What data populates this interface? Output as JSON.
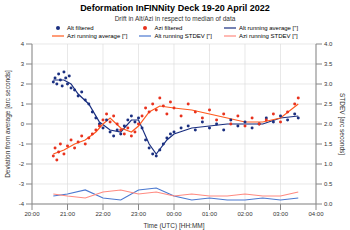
{
  "chart_data": {
    "type": "scatter",
    "title": "Deformation InFINNity Deck 19-20 April 2022",
    "subtitle": "Drift in Alt/Azi in respect to median of data",
    "x_label": "Time (UTC) [HH:MM]",
    "y_label": "Deviation from average [arc seconds]",
    "y2_label": "STDEV [arc seconds]",
    "xlim": [
      20,
      28
    ],
    "xticks": [
      {
        "value": 20,
        "label": "20:00"
      },
      {
        "value": 21,
        "label": "21:00"
      },
      {
        "value": 22,
        "label": "22:00"
      },
      {
        "value": 23,
        "label": "23:00"
      },
      {
        "value": 24,
        "label": "00:00"
      },
      {
        "value": 25,
        "label": "01:00"
      },
      {
        "value": 26,
        "label": "02:00"
      },
      {
        "value": 27,
        "label": "03:00"
      },
      {
        "value": 28,
        "label": "04:00"
      }
    ],
    "ylim": [
      -4,
      4
    ],
    "yticks": [
      -4,
      -3,
      -2,
      -1,
      0,
      1,
      2,
      3,
      4
    ],
    "y2lim": [
      0,
      4
    ],
    "y2ticks": [
      {
        "value": 0,
        "label": "0.0"
      },
      0.5,
      {
        "value": 1,
        "label": "1.0"
      },
      1.5,
      {
        "value": 2,
        "label": "2.0"
      },
      2.5,
      {
        "value": 3,
        "label": "3.0"
      },
      3.5,
      {
        "value": 4,
        "label": "4.0"
      }
    ],
    "grid": true,
    "series": [
      {
        "name": "Alt filtered",
        "type": "scatter",
        "marker": "circle",
        "color": "#1a2f80",
        "x": [
          20.6,
          20.65,
          20.7,
          20.75,
          20.8,
          20.85,
          20.9,
          20.95,
          21.0,
          21.05,
          21.1,
          21.2,
          21.3,
          21.4,
          21.5,
          21.6,
          21.7,
          21.8,
          21.9,
          22.0,
          22.1,
          22.2,
          22.3,
          22.4,
          22.5,
          22.6,
          22.7,
          22.8,
          22.9,
          23.0,
          23.1,
          23.2,
          23.3,
          23.4,
          23.5,
          23.6,
          23.7,
          23.8,
          23.9,
          24.0,
          24.2,
          24.4,
          24.6,
          24.8,
          25.0,
          25.2,
          25.4,
          25.6,
          25.8,
          26.0,
          26.2,
          26.4,
          26.6,
          26.8,
          27.0,
          27.2,
          27.4,
          27.5
        ],
        "values": [
          2.1,
          2.3,
          2.0,
          2.5,
          2.2,
          1.9,
          2.6,
          2.3,
          2.0,
          2.4,
          1.8,
          1.7,
          1.4,
          1.6,
          1.2,
          1.0,
          0.6,
          0.3,
          0.0,
          -0.2,
          0.2,
          -0.4,
          -0.6,
          -0.3,
          -0.5,
          -0.1,
          0.2,
          0.4,
          0.1,
          0.3,
          -0.2,
          -0.8,
          -1.2,
          -1.5,
          -1.6,
          -1.3,
          -1.0,
          -0.7,
          -0.5,
          -0.4,
          -0.2,
          -0.1,
          -0.3,
          0.1,
          -0.2,
          0.0,
          -0.3,
          0.2,
          -0.1,
          0.1,
          -0.2,
          0.0,
          0.3,
          0.1,
          0.4,
          0.2,
          0.5,
          0.3
        ]
      },
      {
        "name": "Azi filtered",
        "type": "scatter",
        "marker": "circle",
        "color": "#e8321e",
        "x": [
          20.6,
          20.65,
          20.7,
          20.75,
          20.8,
          20.9,
          21.0,
          21.1,
          21.2,
          21.3,
          21.4,
          21.5,
          21.6,
          21.7,
          21.8,
          21.9,
          22.0,
          22.1,
          22.2,
          22.3,
          22.4,
          22.5,
          22.6,
          22.7,
          22.8,
          22.9,
          23.0,
          23.1,
          23.2,
          23.3,
          23.4,
          23.5,
          23.6,
          23.7,
          23.8,
          23.9,
          24.0,
          24.2,
          24.4,
          24.6,
          24.8,
          25.0,
          25.2,
          25.4,
          25.6,
          25.8,
          26.0,
          26.2,
          26.4,
          26.6,
          26.8,
          27.0,
          27.2,
          27.4,
          27.5
        ],
        "values": [
          -1.6,
          -1.2,
          -1.8,
          -1.4,
          -1.0,
          -1.5,
          -1.1,
          -0.8,
          -1.2,
          -0.9,
          -0.6,
          -1.0,
          -0.7,
          -0.5,
          -0.3,
          -0.1,
          0.2,
          0.5,
          0.1,
          0.4,
          0.0,
          -0.3,
          -0.5,
          -0.2,
          -0.6,
          -0.4,
          0.0,
          0.4,
          0.8,
          0.6,
          1.0,
          0.7,
          1.3,
          0.9,
          0.5,
          1.1,
          0.8,
          0.4,
          1.0,
          0.6,
          0.3,
          0.7,
          0.2,
          0.5,
          0.0,
          0.4,
          -0.1,
          0.3,
          0.0,
          0.2,
          0.5,
          0.1,
          0.6,
          1.0,
          1.3
        ]
      },
      {
        "name": "Alt running average [\"]",
        "type": "line",
        "line_style": "solid",
        "color": "#1a2f80",
        "x": [
          20.6,
          20.9,
          21.1,
          21.3,
          21.6,
          21.9,
          22.2,
          22.5,
          22.8,
          23.0,
          23.3,
          23.5,
          23.8,
          24.0,
          24.5,
          25.0,
          25.5,
          26.0,
          26.5,
          27.0,
          27.5
        ],
        "values": [
          2.2,
          2.2,
          2.0,
          1.5,
          1.0,
          0.1,
          -0.3,
          -0.4,
          0.2,
          0.2,
          -1.0,
          -1.5,
          -0.8,
          -0.5,
          -0.2,
          -0.1,
          0.0,
          0.0,
          0.0,
          0.3,
          0.4
        ]
      },
      {
        "name": "Azi running average [\"]",
        "type": "line",
        "line_style": "solid",
        "color": "#ff5a1e",
        "x": [
          20.6,
          20.9,
          21.2,
          21.5,
          21.8,
          22.0,
          22.2,
          22.5,
          22.8,
          23.0,
          23.3,
          23.6,
          24.0,
          24.5,
          25.0,
          25.5,
          26.0,
          26.5,
          27.0,
          27.5
        ],
        "values": [
          -1.5,
          -1.3,
          -1.0,
          -0.8,
          -0.4,
          0.0,
          0.3,
          -0.2,
          -0.4,
          -0.1,
          0.6,
          0.9,
          0.8,
          0.7,
          0.5,
          0.3,
          0.1,
          0.1,
          0.3,
          1.0
        ]
      },
      {
        "name": "Alt running STDEV [\"]",
        "type": "line",
        "line_style": "solid",
        "axis": "y2",
        "color": "#4a78d0",
        "x": [
          20.6,
          21.0,
          21.5,
          22.0,
          22.5,
          23.0,
          23.5,
          24.0,
          24.5,
          25.0,
          25.5,
          26.0,
          26.5,
          27.0,
          27.5
        ],
        "values": [
          0.2,
          0.25,
          0.35,
          0.15,
          0.1,
          0.35,
          0.4,
          0.2,
          0.1,
          0.15,
          0.1,
          0.1,
          0.15,
          0.1,
          0.15
        ]
      },
      {
        "name": "Azi running STDEV [\"]",
        "type": "line",
        "line_style": "solid",
        "axis": "y2",
        "color": "#ff8a80",
        "x": [
          20.6,
          21.0,
          21.5,
          22.0,
          22.5,
          23.0,
          23.5,
          24.0,
          24.5,
          25.0,
          25.5,
          26.0,
          26.5,
          27.0,
          27.5
        ],
        "values": [
          0.25,
          0.2,
          0.15,
          0.3,
          0.35,
          0.25,
          0.3,
          0.2,
          0.25,
          0.2,
          0.2,
          0.25,
          0.2,
          0.2,
          0.3
        ]
      }
    ]
  }
}
